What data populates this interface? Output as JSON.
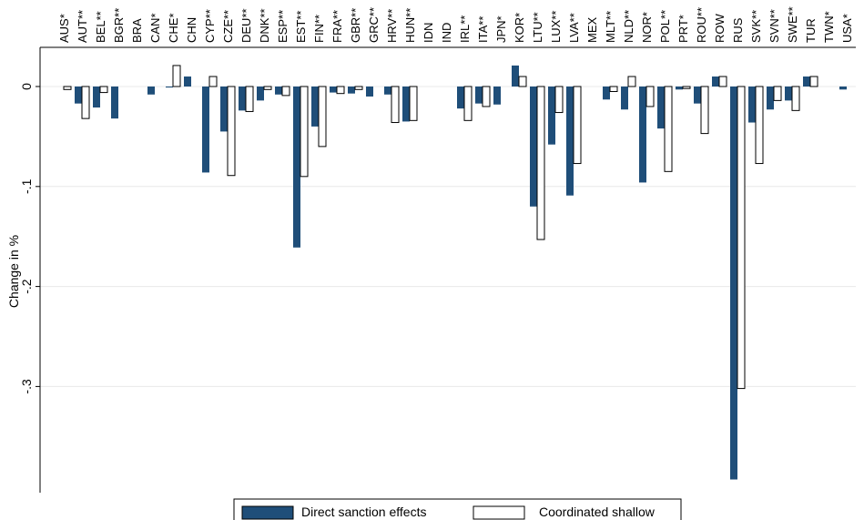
{
  "chart_data": {
    "type": "bar",
    "ylabel": "Change in %",
    "xlabel": "",
    "ylim": [
      -0.395,
      0.03
    ],
    "yticks": [
      0,
      -0.1,
      -0.2,
      -0.3
    ],
    "ytick_labels": [
      "0",
      "-.1",
      "-.2",
      "-.3"
    ],
    "grid": true,
    "legend_position": "bottom",
    "categories": [
      "AUS*",
      "AUT**",
      "BEL**",
      "BGR**",
      "BRA",
      "CAN*",
      "CHE*",
      "CHN",
      "CYP**",
      "CZE**",
      "DEU**",
      "DNK**",
      "ESP**",
      "EST**",
      "FIN**",
      "FRA**",
      "GBR**",
      "GRC**",
      "HRV**",
      "HUN**",
      "IDN",
      "IND",
      "IRL**",
      "ITA**",
      "JPN*",
      "KOR*",
      "LTU**",
      "LUX**",
      "LVA**",
      "MEX",
      "MLT**",
      "NLD**",
      "NOR*",
      "POL**",
      "PRT*",
      "ROU**",
      "ROW",
      "RUS",
      "SVK**",
      "SVN**",
      "SWE**",
      "TUR",
      "TWN*",
      "USA*"
    ],
    "series": [
      {
        "name": "Direct sanction effects",
        "color": "#1f4e79",
        "values": [
          0,
          -0.017,
          -0.021,
          -0.032,
          0,
          -0.008,
          -0.001,
          0.01,
          -0.086,
          -0.045,
          -0.024,
          -0.014,
          -0.008,
          -0.161,
          -0.04,
          -0.006,
          -0.007,
          -0.01,
          -0.008,
          -0.035,
          0,
          0,
          -0.022,
          -0.017,
          -0.018,
          0.021,
          -0.12,
          -0.058,
          -0.109,
          0,
          -0.013,
          -0.023,
          -0.096,
          -0.042,
          -0.003,
          -0.017,
          0.01,
          -0.393,
          -0.036,
          -0.023,
          -0.014,
          0.01,
          0,
          -0.003
        ]
      },
      {
        "name": "Coordinated shallow",
        "color": "#ffffff",
        "values": [
          -0.003,
          -0.032,
          -0.006,
          0,
          0,
          0,
          0.021,
          0,
          0.01,
          -0.089,
          -0.025,
          -0.003,
          -0.009,
          -0.09,
          -0.06,
          -0.007,
          -0.003,
          0,
          -0.036,
          -0.034,
          0,
          0,
          -0.034,
          -0.02,
          0,
          0.01,
          -0.153,
          -0.026,
          -0.077,
          0,
          -0.005,
          0.01,
          -0.02,
          -0.085,
          -0.002,
          -0.047,
          0.01,
          -0.302,
          -0.077,
          -0.014,
          -0.024,
          0.01,
          0,
          0
        ]
      }
    ]
  }
}
